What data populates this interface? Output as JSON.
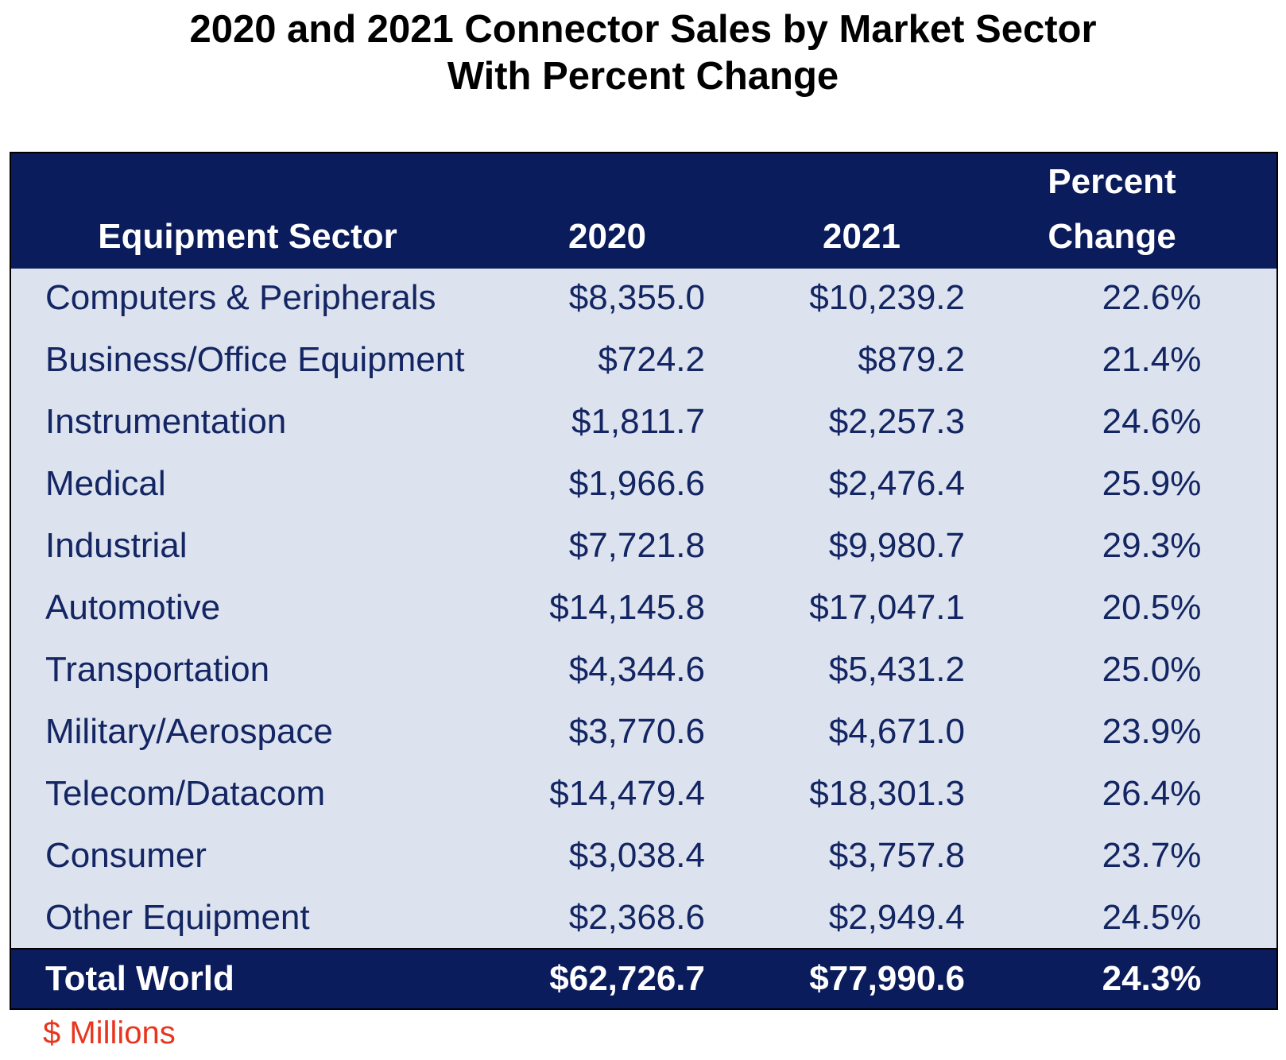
{
  "chart_data": {
    "type": "table",
    "title": "2020 and 2021 Connector Sales by Market Sector",
    "subtitle": "With Percent Change",
    "columns": [
      "Equipment Sector",
      "2020",
      "2021",
      "Percent Change"
    ],
    "header": {
      "sector": "Equipment Sector",
      "y2020": "2020",
      "y2021": "2021",
      "pct_line1": "Percent",
      "pct_line2": "Change"
    },
    "rows": [
      {
        "sector": "Computers & Peripherals",
        "y2020": "$8,355.0",
        "y2021": "$10,239.2",
        "pct": "22.6%"
      },
      {
        "sector": "Business/Office Equipment",
        "y2020": "$724.2",
        "y2021": "$879.2",
        "pct": "21.4%"
      },
      {
        "sector": "Instrumentation",
        "y2020": "$1,811.7",
        "y2021": "$2,257.3",
        "pct": "24.6%"
      },
      {
        "sector": "Medical",
        "y2020": "$1,966.6",
        "y2021": "$2,476.4",
        "pct": "25.9%"
      },
      {
        "sector": "Industrial",
        "y2020": "$7,721.8",
        "y2021": "$9,980.7",
        "pct": "29.3%"
      },
      {
        "sector": "Automotive",
        "y2020": "$14,145.8",
        "y2021": "$17,047.1",
        "pct": "20.5%"
      },
      {
        "sector": "Transportation",
        "y2020": "$4,344.6",
        "y2021": "$5,431.2",
        "pct": "25.0%"
      },
      {
        "sector": "Military/Aerospace",
        "y2020": "$3,770.6",
        "y2021": "$4,671.0",
        "pct": "23.9%"
      },
      {
        "sector": "Telecom/Datacom",
        "y2020": "$14,479.4",
        "y2021": "$18,301.3",
        "pct": "26.4%"
      },
      {
        "sector": "Consumer",
        "y2020": "$3,038.4",
        "y2021": "$3,757.8",
        "pct": "23.7%"
      },
      {
        "sector": "Other Equipment",
        "y2020": "$2,368.6",
        "y2021": "$2,949.4",
        "pct": "24.5%"
      }
    ],
    "total": {
      "sector": "Total World",
      "y2020": "$62,726.7",
      "y2021": "$77,990.6",
      "pct": "24.3%"
    },
    "unit_note": "$ Millions"
  },
  "colors": {
    "header_bg": "#0b1c5c",
    "body_bg": "#dce3ee",
    "body_text": "#132563",
    "note_text": "#e8351e"
  }
}
